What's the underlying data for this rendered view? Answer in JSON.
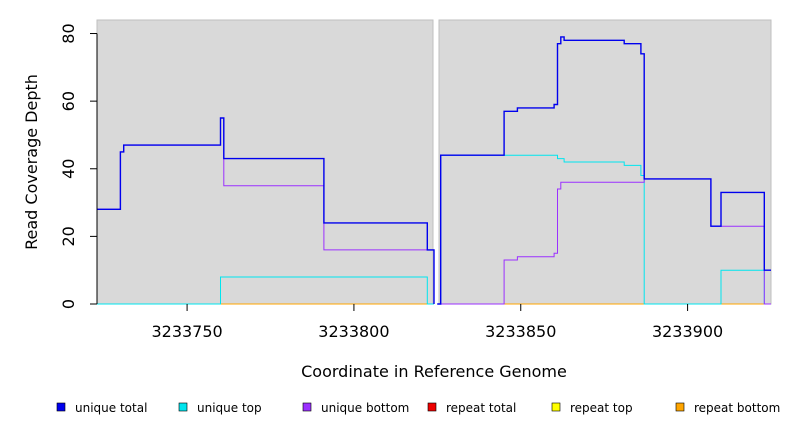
{
  "chart_data": {
    "type": "line",
    "title": "",
    "xlabel": "Coordinate in Reference Genome",
    "ylabel": "Read Coverage Depth",
    "ylim": [
      0,
      84
    ],
    "yticks": [
      0,
      20,
      40,
      60,
      80
    ],
    "xticks": [
      3233750,
      3233800,
      3233850,
      3233900
    ],
    "grid": false,
    "legend_position": "bottom",
    "colors": {
      "panel_bg": "#d9d9d9",
      "unique_total": "#0000ee",
      "unique_top": "#00e5ee",
      "unique_bottom": "#9b30ff",
      "repeat_total": "#ee0000",
      "repeat_top": "#ffff00",
      "repeat_bottom": "#ffa500"
    },
    "panels": [
      {
        "xlim": [
          3233723,
          3233824
        ],
        "series": [
          {
            "name": "unique total",
            "key": "unique_total",
            "x": [
              3233723,
              3233730,
              3233731,
              3233760,
              3233761,
              3233791,
              3233822,
              3233824
            ],
            "y": [
              28,
              45,
              47,
              55,
              43,
              24,
              16,
              0
            ]
          },
          {
            "name": "unique top",
            "key": "unique_top",
            "x": [
              3233723,
              3233760,
              3233822,
              3233824
            ],
            "y": [
              0,
              8,
              0,
              0
            ]
          },
          {
            "name": "unique bottom",
            "key": "unique_bottom",
            "x": [
              3233723,
              3233730,
              3233731,
              3233760,
              3233761,
              3233791,
              3233822,
              3233824
            ],
            "y": [
              28,
              45,
              47,
              55,
              35,
              16,
              16,
              0
            ]
          },
          {
            "name": "repeat bottom",
            "key": "repeat_bottom",
            "x": [
              3233723,
              3233824
            ],
            "y": [
              0,
              0
            ]
          }
        ]
      },
      {
        "xlim": [
          3233825,
          3233925
        ],
        "series": [
          {
            "name": "unique total",
            "key": "unique_total",
            "x": [
              3233825,
              3233826,
              3233845,
              3233849,
              3233860,
              3233861,
              3233862,
              3233863,
              3233881,
              3233886,
              3233887,
              3233907,
              3233910,
              3233923,
              3233925
            ],
            "y": [
              0,
              44,
              57,
              58,
              59,
              77,
              79,
              78,
              77,
              74,
              37,
              23,
              33,
              10,
              10
            ]
          },
          {
            "name": "unique top",
            "key": "unique_top",
            "x": [
              3233825,
              3233826,
              3233861,
              3233863,
              3233881,
              3233886,
              3233887,
              3233910,
              3233923,
              3233925
            ],
            "y": [
              0,
              44,
              43,
              42,
              41,
              38,
              0,
              10,
              0,
              0
            ]
          },
          {
            "name": "unique bottom",
            "key": "unique_bottom",
            "x": [
              3233825,
              3233845,
              3233849,
              3233860,
              3233861,
              3233862,
              3233887,
              3233907,
              3233923,
              3233925
            ],
            "y": [
              0,
              13,
              14,
              15,
              34,
              36,
              37,
              23,
              0,
              0
            ]
          },
          {
            "name": "repeat bottom",
            "key": "repeat_bottom",
            "x": [
              3233825,
              3233925
            ],
            "y": [
              0,
              0
            ]
          }
        ]
      }
    ]
  },
  "legend": [
    {
      "label": "unique total",
      "key": "unique_total"
    },
    {
      "label": "unique top",
      "key": "unique_top"
    },
    {
      "label": "unique bottom",
      "key": "unique_bottom"
    },
    {
      "label": "repeat total",
      "key": "repeat_total"
    },
    {
      "label": "repeat top",
      "key": "repeat_top"
    },
    {
      "label": "repeat bottom",
      "key": "repeat_bottom"
    }
  ]
}
